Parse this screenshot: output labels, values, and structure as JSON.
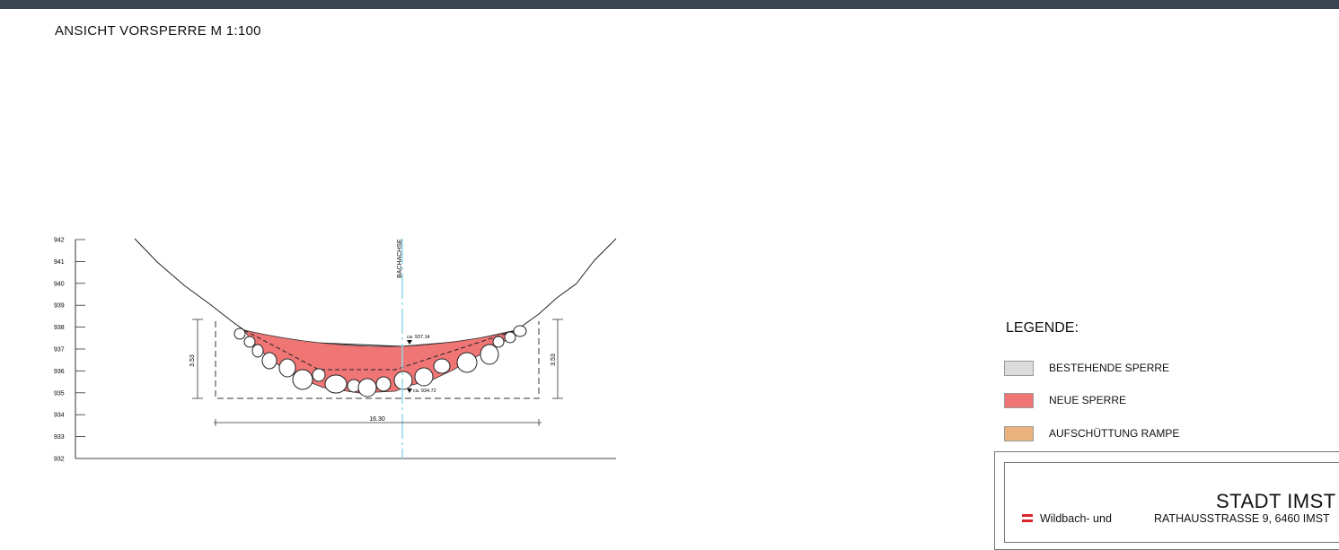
{
  "drawing": {
    "title": "ANSICHT VORSPERRE M 1:100"
  },
  "elevation_scale": {
    "labels": [
      "942",
      "941",
      "940",
      "939",
      "938",
      "937",
      "936",
      "935",
      "934",
      "933",
      "932"
    ]
  },
  "section": {
    "axis_label": "BACHACHSE",
    "crest_level_label": "ca. 937.14",
    "bottom_level_label": "ca. 934.72",
    "height_left": "3.53",
    "height_right": "3.53",
    "width": "16.30"
  },
  "colors": {
    "existing": "#dcdcdc",
    "new": "#f07575",
    "fill": "#eab27e",
    "axis": "#8fd9ea"
  },
  "legend": {
    "title": "LEGENDE:",
    "items": [
      {
        "label": "BESTEHENDE SPERRE",
        "color": "#dcdcdc"
      },
      {
        "label": "NEUE SPERRE",
        "color": "#f07575"
      },
      {
        "label": "AUFSCHÜTTUNG RAMPE",
        "color": "#eab27e"
      }
    ]
  },
  "titleblock": {
    "client": "STADT IMST",
    "address": "RATHAUSSTRASSE 9, 6460 IMST",
    "agency": "Wildbach- und"
  }
}
